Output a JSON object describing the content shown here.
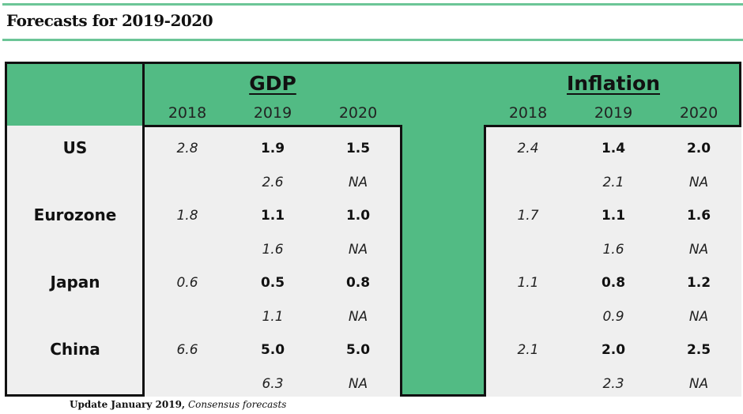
{
  "title": "Forecasts for 2019-2020",
  "gdp_header": "GDP",
  "inflation_header": "Inflation",
  "years": [
    "2018",
    "2019",
    "2020"
  ],
  "rows": [
    {
      "country": "US",
      "gdp": [
        "2.8",
        "1.9",
        "1.5"
      ],
      "gdp_prev": "2.6",
      "gdp_prev2020": "NA",
      "inf": [
        "2.4",
        "1.4",
        "2.0"
      ],
      "inf_prev": "2.1",
      "inf_prev2020": "NA"
    },
    {
      "country": "Eurozone",
      "gdp": [
        "1.8",
        "1.1",
        "1.0"
      ],
      "gdp_prev": "1.6",
      "gdp_prev2020": "NA",
      "inf": [
        "1.7",
        "1.1",
        "1.6"
      ],
      "inf_prev": "1.6",
      "inf_prev2020": "NA"
    },
    {
      "country": "Japan",
      "gdp": [
        "0.6",
        "0.5",
        "0.8"
      ],
      "gdp_prev": "1.1",
      "gdp_prev2020": "NA",
      "inf": [
        "1.1",
        "0.8",
        "1.2"
      ],
      "inf_prev": "0.9",
      "inf_prev2020": "NA"
    },
    {
      "country": "China",
      "gdp": [
        "6.6",
        "5.0",
        "5.0"
      ],
      "gdp_prev": "6.3",
      "gdp_prev2020": "NA",
      "inf": [
        "2.1",
        "2.0",
        "2.5"
      ],
      "inf_prev": "2.3",
      "inf_prev2020": "NA"
    }
  ],
  "footer": {
    "bold": "Update January 2019,",
    "italic": "Consensus forecasts"
  },
  "colors": {
    "green": "#52bb84",
    "panel": "#efefef"
  }
}
